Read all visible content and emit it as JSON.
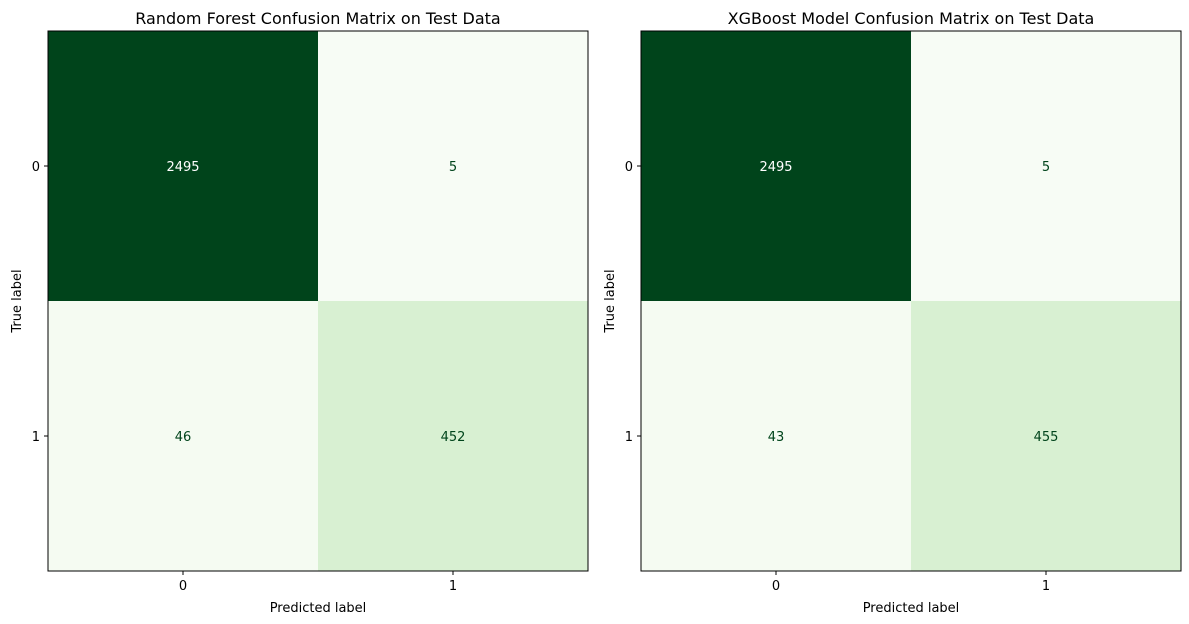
{
  "chart_data": [
    {
      "type": "heatmap",
      "title": "Random Forest Confusion Matrix on Test Data",
      "xlabel": "Predicted label",
      "ylabel": "True label",
      "x_categories": [
        "0",
        "1"
      ],
      "y_categories": [
        "0",
        "1"
      ],
      "values": [
        [
          2495,
          5
        ],
        [
          46,
          452
        ]
      ],
      "colormap": "Greens",
      "colors": {
        "dark": "#00441b",
        "light": "#f7fcf5",
        "mid_light": "#d7efd1"
      },
      "grid": false
    },
    {
      "type": "heatmap",
      "title": "XGBoost Model Confusion Matrix on Test Data",
      "xlabel": "Predicted label",
      "ylabel": "True label",
      "x_categories": [
        "0",
        "1"
      ],
      "y_categories": [
        "0",
        "1"
      ],
      "values": [
        [
          2495,
          5
        ],
        [
          43,
          455
        ]
      ],
      "colormap": "Greens",
      "colors": {
        "dark": "#00441b",
        "light": "#f7fcf5",
        "mid_light": "#d7efd1"
      },
      "grid": false
    }
  ]
}
